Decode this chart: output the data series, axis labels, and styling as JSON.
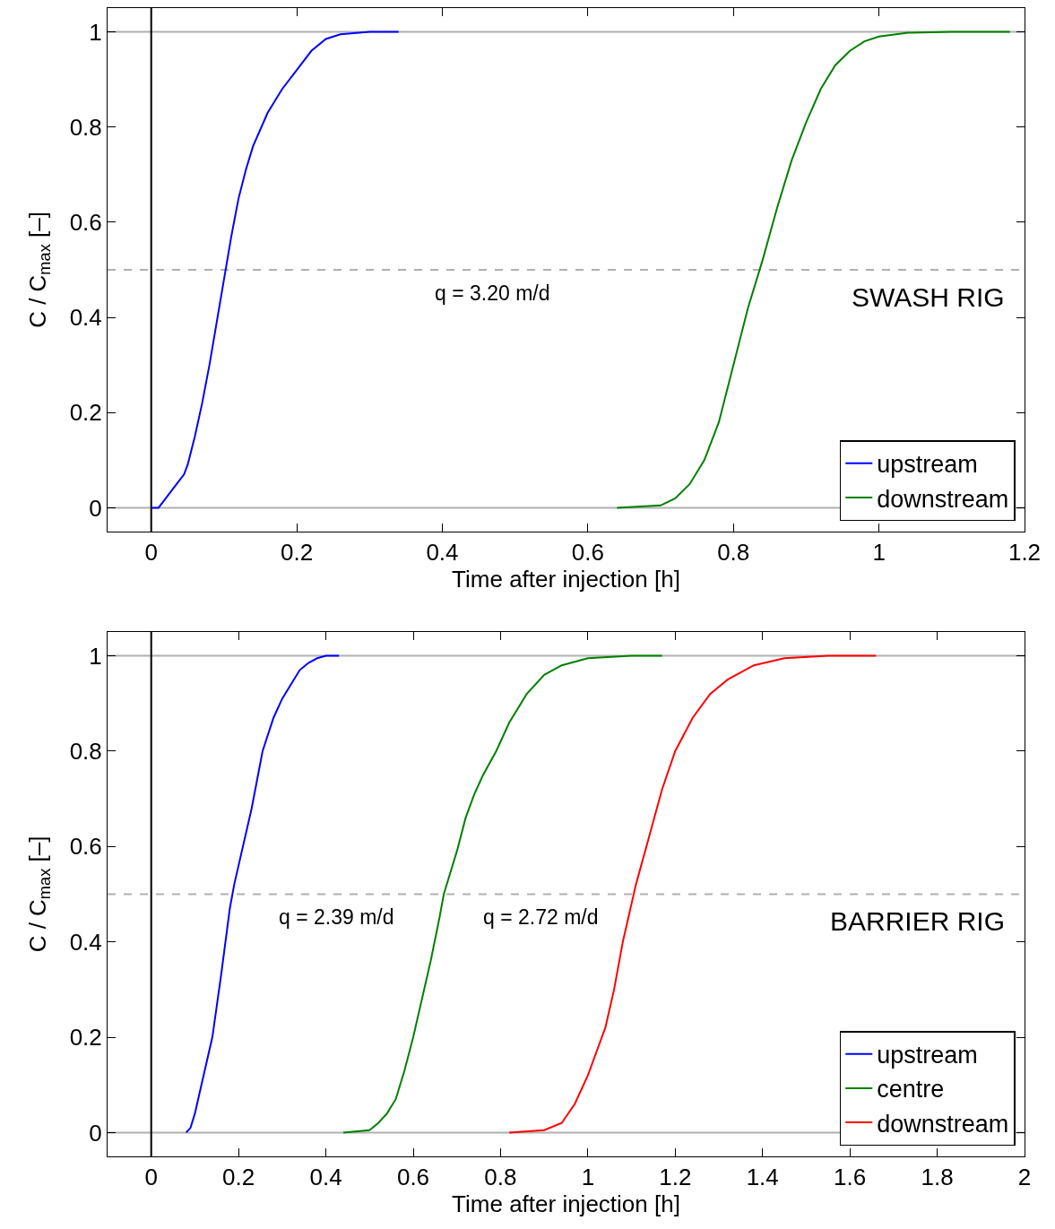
{
  "chart_data": [
    {
      "type": "line",
      "title": "SWASH RIG",
      "xlabel": "Time after injection [h]",
      "ylabel": "C / C$_{max}$ [–]",
      "xlim": [
        -0.06,
        1.2
      ],
      "xticks": [
        0,
        0.2,
        0.4,
        0.6,
        0.8,
        1,
        1.2
      ],
      "ylim": [
        -0.05,
        1.05
      ],
      "yticks": [
        0,
        0.2,
        0.4,
        0.6,
        0.8,
        1
      ],
      "grid": false,
      "legend": "bottom right",
      "line_style": "solid",
      "marker": "none",
      "series": [
        {
          "name": "upstream",
          "color": "#0000ff",
          "x": [
            0,
            0.01,
            0.02,
            0.03,
            0.045,
            0.05,
            0.06,
            0.07,
            0.08,
            0.09,
            0.1,
            0.11,
            0.12,
            0.13,
            0.14,
            0.16,
            0.18,
            0.2,
            0.22,
            0.24,
            0.26,
            0.3,
            0.34
          ],
          "values": [
            0,
            0,
            0.02,
            0.04,
            0.07,
            0.09,
            0.15,
            0.22,
            0.3,
            0.39,
            0.48,
            0.57,
            0.65,
            0.71,
            0.76,
            0.83,
            0.88,
            0.92,
            0.96,
            0.985,
            0.995,
            1,
            1
          ]
        },
        {
          "name": "downstream",
          "color": "#008000",
          "x": [
            0.64,
            0.7,
            0.72,
            0.74,
            0.76,
            0.78,
            0.8,
            0.82,
            0.84,
            0.86,
            0.88,
            0.9,
            0.92,
            0.94,
            0.96,
            0.98,
            1,
            1.04,
            1.1,
            1.18
          ],
          "values": [
            0,
            0.005,
            0.02,
            0.05,
            0.1,
            0.18,
            0.3,
            0.42,
            0.52,
            0.63,
            0.73,
            0.81,
            0.88,
            0.93,
            0.96,
            0.98,
            0.99,
            0.998,
            1,
            1
          ]
        }
      ],
      "ref_lines": [
        {
          "axis": "y",
          "value": 0,
          "color": "#b0b0b0",
          "line_style": "solid"
        },
        {
          "axis": "y",
          "value": 1,
          "color": "#b0b0b0",
          "line_style": "solid"
        },
        {
          "axis": "y",
          "value": 0.5,
          "color": "#b0b0b0",
          "line_style": "dashed"
        },
        {
          "axis": "x",
          "value": 0,
          "color": "#000000",
          "line_style": "solid"
        }
      ],
      "annotations": [
        "q = 3.20 m/d"
      ]
    },
    {
      "type": "line",
      "title": "BARRIER RIG",
      "xlabel": "Time after injection [h]",
      "ylabel": "C / C$_{max}$ [–]",
      "xlim": [
        -0.1,
        2
      ],
      "xticks": [
        0,
        0.2,
        0.4,
        0.6,
        0.8,
        1,
        1.2,
        1.4,
        1.6,
        1.8,
        2
      ],
      "ylim": [
        -0.05,
        1.05
      ],
      "yticks": [
        0,
        0.2,
        0.4,
        0.6,
        0.8,
        1
      ],
      "grid": false,
      "legend": "bottom right",
      "line_style": "solid",
      "marker": "none",
      "series": [
        {
          "name": "upstream",
          "color": "#0000ff",
          "x": [
            0.08,
            0.09,
            0.1,
            0.12,
            0.14,
            0.16,
            0.18,
            0.19,
            0.21,
            0.23,
            0.255,
            0.28,
            0.3,
            0.32,
            0.34,
            0.36,
            0.38,
            0.4,
            0.43
          ],
          "values": [
            0,
            0.01,
            0.04,
            0.12,
            0.2,
            0.33,
            0.47,
            0.52,
            0.6,
            0.68,
            0.8,
            0.87,
            0.91,
            0.94,
            0.97,
            0.985,
            0.995,
            1,
            1
          ]
        },
        {
          "name": "centre",
          "color": "#008000",
          "x": [
            0.44,
            0.5,
            0.52,
            0.54,
            0.56,
            0.58,
            0.6,
            0.62,
            0.64,
            0.66,
            0.67,
            0.7,
            0.72,
            0.74,
            0.76,
            0.79,
            0.82,
            0.86,
            0.9,
            0.94,
            1,
            1.1,
            1.17
          ],
          "values": [
            0,
            0.005,
            0.02,
            0.04,
            0.07,
            0.13,
            0.2,
            0.28,
            0.36,
            0.45,
            0.5,
            0.59,
            0.66,
            0.71,
            0.75,
            0.8,
            0.86,
            0.92,
            0.96,
            0.98,
            0.995,
            1,
            1
          ]
        },
        {
          "name": "downstream",
          "color": "#ff0000",
          "x": [
            0.82,
            0.9,
            0.94,
            0.97,
            1,
            1.02,
            1.04,
            1.06,
            1.08,
            1.1,
            1.11,
            1.14,
            1.17,
            1.2,
            1.24,
            1.28,
            1.32,
            1.38,
            1.45,
            1.55,
            1.66
          ],
          "values": [
            0,
            0.005,
            0.02,
            0.06,
            0.12,
            0.17,
            0.22,
            0.3,
            0.4,
            0.48,
            0.52,
            0.62,
            0.72,
            0.8,
            0.87,
            0.92,
            0.95,
            0.98,
            0.995,
            1,
            1
          ]
        }
      ],
      "ref_lines": [
        {
          "axis": "y",
          "value": 0,
          "color": "#b0b0b0",
          "line_style": "solid"
        },
        {
          "axis": "y",
          "value": 1,
          "color": "#b0b0b0",
          "line_style": "solid"
        },
        {
          "axis": "y",
          "value": 0.5,
          "color": "#b0b0b0",
          "line_style": "dashed"
        },
        {
          "axis": "x",
          "value": 0,
          "color": "#000000",
          "line_style": "solid"
        }
      ],
      "annotations": [
        "q = 2.39 m/d",
        "q = 2.72 m/d"
      ]
    }
  ]
}
